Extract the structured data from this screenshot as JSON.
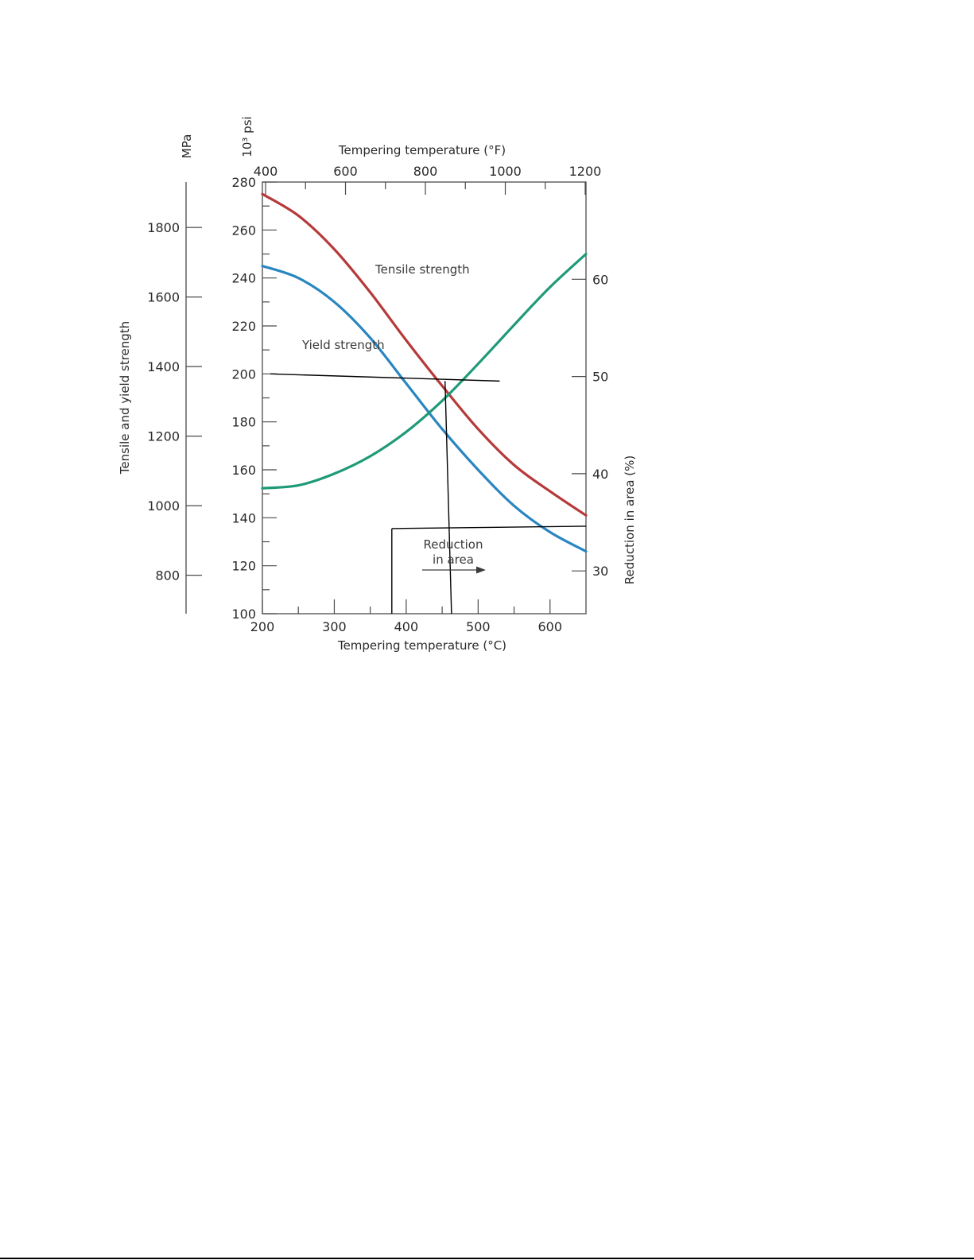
{
  "chart_data": {
    "type": "line",
    "axes": {
      "x_bottom": {
        "label": "Tempering temperature (°C)",
        "range": [
          200,
          650
        ],
        "ticks": [
          200,
          300,
          400,
          500,
          600
        ]
      },
      "x_top": {
        "label": "Tempering temperature (°F)",
        "ticks": [
          400,
          600,
          800,
          1000,
          1200
        ]
      },
      "y_left_psi": {
        "label": "10³ psi",
        "range": [
          100,
          280
        ],
        "ticks": [
          100,
          120,
          140,
          160,
          180,
          200,
          220,
          240,
          260,
          280
        ]
      },
      "y_left_mpa": {
        "label": "MPa",
        "ticks": [
          800,
          1000,
          1200,
          1400,
          1600,
          1800
        ]
      },
      "y_left_title": "Tensile and yield strength",
      "y_right": {
        "label": "Reduction in area (%)",
        "range": [
          25.6,
          70
        ],
        "ticks": [
          30,
          40,
          50,
          60
        ]
      }
    },
    "series": [
      {
        "name": "Tensile strength",
        "axis": "y_left_psi",
        "color": "#b63a3a",
        "x": [
          200,
          250,
          300,
          350,
          400,
          450,
          500,
          550,
          600,
          650
        ],
        "y": [
          275,
          266,
          252,
          234,
          214,
          195,
          177,
          162,
          151,
          141
        ]
      },
      {
        "name": "Yield strength",
        "axis": "y_left_psi",
        "color": "#2a86c0",
        "x": [
          200,
          250,
          300,
          350,
          400,
          450,
          500,
          550,
          600,
          650
        ],
        "y": [
          245,
          240,
          230,
          215,
          196,
          177,
          160,
          145,
          134,
          126
        ]
      },
      {
        "name": "Reduction in area",
        "axis": "y_right",
        "color": "#1f9a78",
        "x": [
          200,
          250,
          300,
          350,
          400,
          450,
          500,
          550,
          600,
          650
        ],
        "y": [
          38.5,
          38.8,
          40,
          41.8,
          44.3,
          47.5,
          51.3,
          55.3,
          59.2,
          62.6
        ]
      }
    ],
    "annotations": {
      "tensile_label": "Tensile strength",
      "yield_label": "Yield strength",
      "reduction_label_line1": "Reduction",
      "reduction_label_line2": "in area"
    },
    "construction_lines": [
      {
        "x": [
          211,
          530
        ],
        "y": [
          200,
          197
        ]
      },
      {
        "x": [
          454,
          463
        ],
        "y": [
          197,
          100
        ]
      },
      {
        "x": [
          380,
          650
        ],
        "y": [
          135.5,
          136.5
        ]
      },
      {
        "x": [
          380,
          380
        ],
        "y": [
          135.5,
          100
        ]
      }
    ],
    "grid": false
  }
}
